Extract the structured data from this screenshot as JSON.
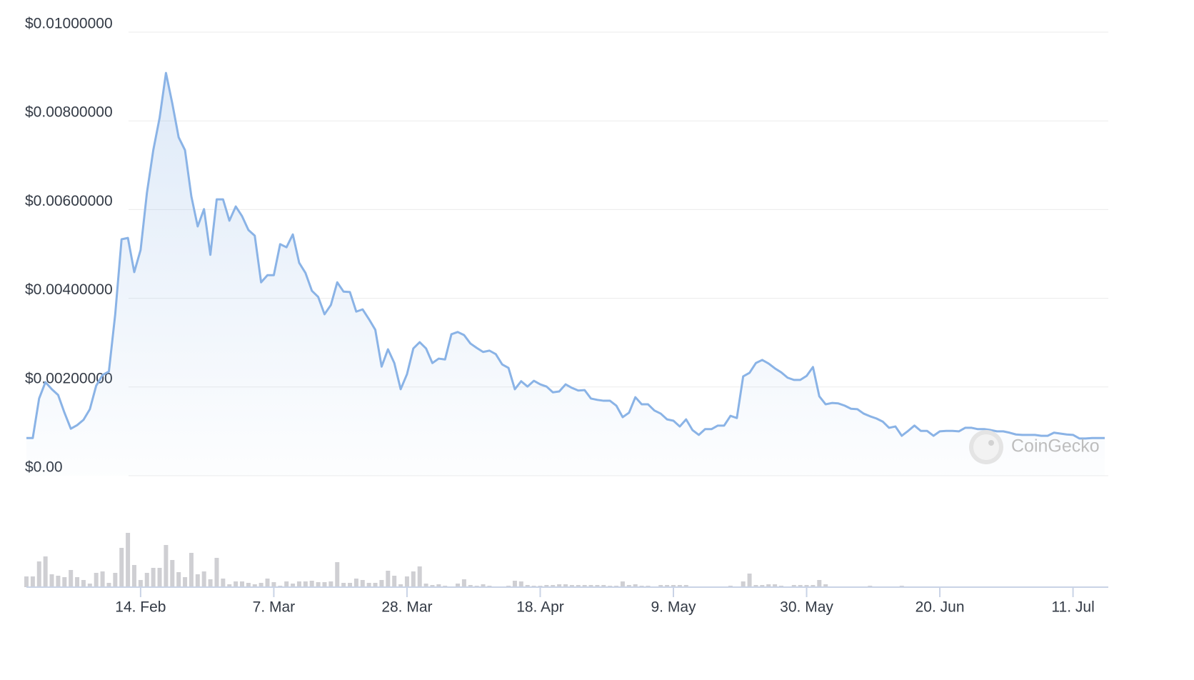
{
  "chart_data": {
    "type": "line",
    "watermark": "CoinGecko",
    "categories": [
      null,
      null,
      null,
      null,
      null,
      null,
      null,
      null,
      null,
      null,
      null,
      null,
      null,
      null,
      null,
      null,
      null,
      null,
      "14. Feb",
      null,
      null,
      null,
      null,
      null,
      null,
      null,
      null,
      null,
      null,
      null,
      null,
      null,
      null,
      null,
      null,
      null,
      null,
      null,
      null,
      "7. Mar",
      null,
      null,
      null,
      null,
      null,
      null,
      null,
      null,
      null,
      null,
      null,
      null,
      null,
      null,
      null,
      null,
      null,
      null,
      null,
      null,
      "28. Mar",
      null,
      null,
      null,
      null,
      null,
      null,
      null,
      null,
      null,
      null,
      null,
      null,
      null,
      null,
      null,
      null,
      null,
      null,
      null,
      null,
      "18. Apr",
      null,
      null,
      null,
      null,
      null,
      null,
      null,
      null,
      null,
      null,
      null,
      null,
      null,
      null,
      null,
      null,
      null,
      null,
      null,
      null,
      "9. May",
      null,
      null,
      null,
      null,
      null,
      null,
      null,
      null,
      null,
      null,
      null,
      null,
      null,
      null,
      null,
      null,
      null,
      null,
      null,
      null,
      "30. May",
      null,
      null,
      null,
      null,
      null,
      null,
      null,
      null,
      null,
      null,
      null,
      null,
      null,
      null,
      null,
      null,
      null,
      null,
      null,
      null,
      "20. Jun",
      null,
      null,
      null,
      null,
      null,
      null,
      null,
      null,
      null,
      null,
      null,
      null,
      null,
      null,
      null,
      null,
      null,
      null,
      null,
      null,
      "11. Jul",
      null,
      null,
      null,
      null,
      null
    ],
    "series": [
      {
        "color": "#8ab3e6",
        "values": [
          0.00085,
          0.00085,
          0.00174,
          0.00211,
          0.00195,
          0.00182,
          0.00142,
          0.00106,
          0.00114,
          0.00126,
          0.0015,
          0.00203,
          0.00227,
          0.00235,
          0.00364,
          0.00533,
          0.00536,
          0.00459,
          0.00509,
          0.00638,
          0.00734,
          0.00807,
          0.00908,
          0.00839,
          0.00763,
          0.00734,
          0.0063,
          0.00562,
          0.00601,
          0.00498,
          0.00623,
          0.00623,
          0.00575,
          0.00607,
          0.00585,
          0.00554,
          0.00541,
          0.00436,
          0.00452,
          0.00452,
          0.00522,
          0.00515,
          0.00544,
          0.0048,
          0.00457,
          0.00417,
          0.00403,
          0.00364,
          0.00385,
          0.00436,
          0.00415,
          0.00414,
          0.0037,
          0.00375,
          0.00353,
          0.00329,
          0.00246,
          0.00285,
          0.00254,
          0.00195,
          0.00229,
          0.00287,
          0.00301,
          0.00287,
          0.00254,
          0.00264,
          0.00262,
          0.00319,
          0.00324,
          0.00317,
          0.00298,
          0.00288,
          0.00279,
          0.00282,
          0.00274,
          0.00251,
          0.00243,
          0.00195,
          0.00213,
          0.00201,
          0.00214,
          0.00206,
          0.00201,
          0.00188,
          0.0019,
          0.00206,
          0.00198,
          0.00192,
          0.00193,
          0.00174,
          0.00171,
          0.00169,
          0.00169,
          0.00158,
          0.00132,
          0.00142,
          0.00177,
          0.00161,
          0.00161,
          0.00147,
          0.0014,
          0.00127,
          0.00124,
          0.00111,
          0.00127,
          0.00103,
          0.00092,
          0.00105,
          0.00105,
          0.00113,
          0.00113,
          0.00135,
          0.0013,
          0.00224,
          0.00232,
          0.00254,
          0.00261,
          0.00253,
          0.00242,
          0.00233,
          0.00221,
          0.00216,
          0.00216,
          0.00225,
          0.00245,
          0.00179,
          0.00161,
          0.00164,
          0.00163,
          0.00158,
          0.00151,
          0.0015,
          0.0014,
          0.00134,
          0.00129,
          0.00122,
          0.00108,
          0.00111,
          0.0009,
          0.00101,
          0.00113,
          0.00101,
          0.00101,
          0.0009,
          0.001,
          0.00101,
          0.00101,
          0.001,
          0.00108,
          0.00108,
          0.00105,
          0.00105,
          0.00103,
          0.001,
          0.001,
          0.00097,
          0.00093,
          0.00092,
          0.00092,
          0.00092,
          0.0009,
          0.0009,
          0.00097,
          0.00095,
          0.00093,
          0.00092,
          0.00084,
          0.00084,
          0.00085,
          0.00085,
          0.00085
        ]
      },
      {
        "color": "#cfcfd3",
        "axis": "y2",
        "values": [
          15,
          15,
          36,
          43,
          18,
          16,
          14,
          24,
          14,
          10,
          5,
          20,
          22,
          6,
          20,
          55,
          76,
          31,
          10,
          20,
          27,
          27,
          59,
          38,
          21,
          14,
          48,
          18,
          22,
          11,
          41,
          12,
          4,
          8,
          8,
          6,
          4,
          6,
          12,
          7,
          2,
          8,
          5,
          8,
          8,
          9,
          7,
          7,
          8,
          35,
          6,
          6,
          12,
          10,
          6,
          6,
          10,
          23,
          16,
          4,
          15,
          22,
          29,
          5,
          3,
          4,
          2,
          1,
          5,
          11,
          3,
          2,
          4,
          2,
          1,
          1,
          2,
          9,
          8,
          3,
          2,
          2,
          3,
          3,
          4,
          4,
          3,
          3,
          3,
          3,
          3,
          3,
          2,
          2,
          8,
          3,
          4,
          2,
          2,
          1,
          3,
          3,
          3,
          3,
          3,
          1,
          1,
          1,
          1,
          1,
          1,
          2,
          1,
          8,
          19,
          3,
          3,
          4,
          4,
          2,
          1,
          3,
          3,
          3,
          3,
          10,
          4,
          1,
          1,
          1,
          1,
          1,
          1,
          2,
          1,
          1,
          1,
          1,
          2,
          1,
          1,
          1,
          1,
          1,
          1,
          1,
          1,
          1,
          1,
          1,
          1,
          1,
          1,
          1,
          1,
          1,
          1,
          1,
          1,
          1,
          1,
          1,
          1,
          1,
          1,
          1,
          1,
          1,
          1,
          1,
          1
        ]
      }
    ],
    "ylim": [
      0,
      0.01
    ],
    "yticks": [
      {
        "value": 0,
        "label": "$0.00"
      },
      {
        "value": 0.002,
        "label": "$0.00200000"
      },
      {
        "value": 0.004,
        "label": "$0.00400000"
      },
      {
        "value": 0.006,
        "label": "$0.00600000"
      },
      {
        "value": 0.008,
        "label": "$0.00800000"
      },
      {
        "value": 0.01,
        "label": "$0.01000000"
      }
    ],
    "y2lim": [
      0,
      100
    ],
    "grid": true
  }
}
